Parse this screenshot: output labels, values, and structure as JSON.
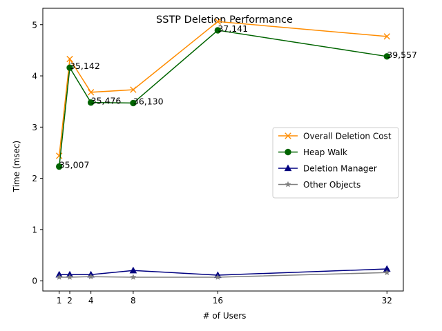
{
  "chart_data": {
    "type": "line",
    "title": "SSTP Deletion Performance",
    "xlabel": "# of Users",
    "ylabel": "Time (msec)",
    "x": [
      1,
      2,
      4,
      8,
      16,
      32
    ],
    "x_ticks": [
      "1",
      "2",
      "4",
      "8",
      "16",
      "32"
    ],
    "y_ticks": [
      "0",
      "1",
      "2",
      "3",
      "4",
      "5"
    ],
    "xlim": [
      -0.55,
      33.55
    ],
    "ylim": [
      -0.2,
      5.32
    ],
    "grid": false,
    "legend_position": "center-right",
    "series": [
      {
        "name": "Overall Deletion Cost",
        "color": "#ff8c00",
        "marker": "x",
        "values": [
          2.44,
          4.33,
          3.68,
          3.73,
          5.06,
          4.77
        ]
      },
      {
        "name": "Heap Walk",
        "color": "#006400",
        "marker": "circle",
        "values": [
          2.23,
          4.16,
          3.48,
          3.47,
          4.89,
          4.38
        ]
      },
      {
        "name": "Deletion Manager",
        "color": "#000080",
        "marker": "triangle",
        "values": [
          0.12,
          0.12,
          0.12,
          0.2,
          0.11,
          0.23
        ]
      },
      {
        "name": "Other Objects",
        "color": "#808080",
        "marker": "star",
        "values": [
          0.07,
          0.07,
          0.08,
          0.07,
          0.07,
          0.16
        ]
      }
    ],
    "annotations": [
      {
        "x": 1,
        "y": 2.23,
        "text": "35,007"
      },
      {
        "x": 2,
        "y": 4.16,
        "text": "35,142"
      },
      {
        "x": 4,
        "y": 3.48,
        "text": "35,476"
      },
      {
        "x": 8,
        "y": 3.47,
        "text": "36,130"
      },
      {
        "x": 16,
        "y": 4.89,
        "text": "37,141"
      },
      {
        "x": 32,
        "y": 4.38,
        "text": "39,557"
      }
    ]
  }
}
